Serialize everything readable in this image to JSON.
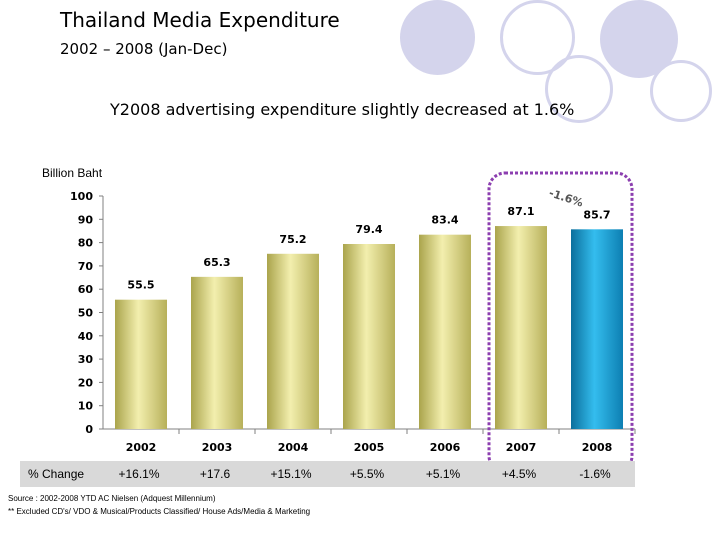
{
  "header": {
    "title": "Thailand Media Expenditure",
    "subtitle": "2002 – 2008 (Jan-Dec)",
    "headline": "Y2008 advertising expenditure slightly decreased at 1.6%"
  },
  "chart_data": {
    "type": "bar",
    "title": "Thailand Media Expenditure",
    "ylabel": "Billion Baht",
    "xlabel": "",
    "categories": [
      "2002",
      "2003",
      "2004",
      "2005",
      "2006",
      "2007",
      "2008"
    ],
    "values": [
      55.5,
      65.3,
      75.2,
      79.4,
      83.4,
      87.1,
      85.7
    ],
    "value_labels": [
      "55.5",
      "65.3",
      "75.2",
      "79.4",
      "83.4",
      "87.1",
      "85.7"
    ],
    "ylim": [
      0,
      100
    ],
    "yticks": [
      0,
      10,
      20,
      30,
      40,
      50,
      60,
      70,
      80,
      90,
      100
    ],
    "grid": false,
    "annotation": "-1.6%",
    "highlight_categories": [
      "2007",
      "2008"
    ]
  },
  "pct_change": {
    "label": "% Change",
    "values": [
      "+16.1%",
      "+17.6",
      "+15.1%",
      "+5.5%",
      "+5.1%",
      "+4.5%",
      "-1.6%"
    ]
  },
  "footnotes": {
    "source": "Source : 2002-2008 YTD AC Nielsen (Adquest Millennium)",
    "note": "** Excluded CD's/ VDO & Musical/Products Classified/ House Ads/Media & Marketing"
  },
  "colors": {
    "bar_gold": "#dcd679",
    "bar_blue": "#1aa5d8",
    "highlight_border": "#8c3fb0",
    "decor_circle": "#d3d3ec"
  }
}
